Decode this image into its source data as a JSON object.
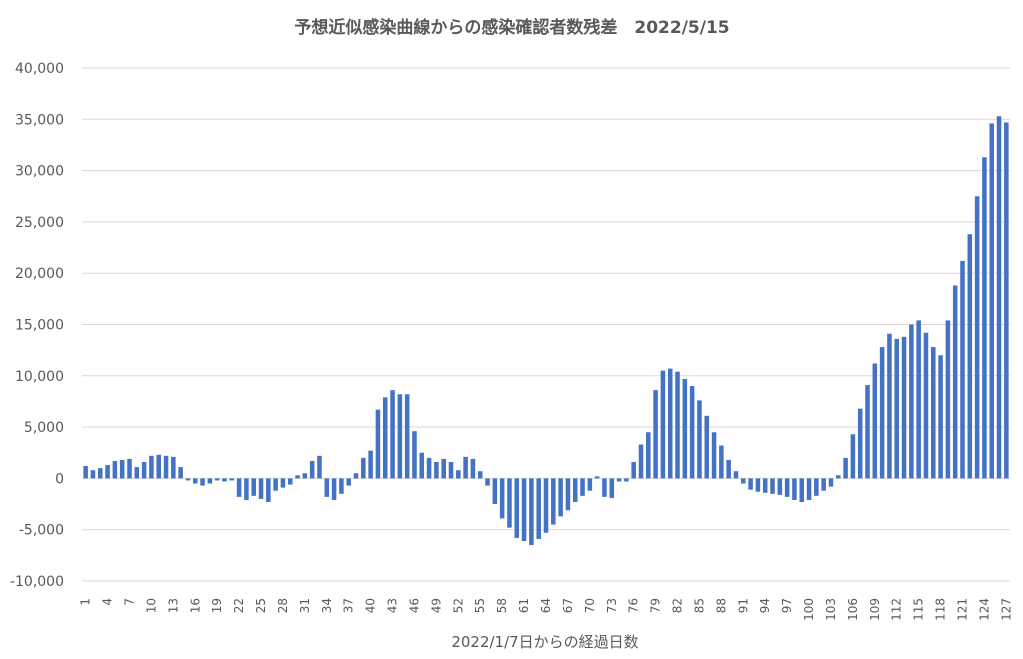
{
  "chart_data": {
    "type": "bar",
    "title": "予想近似感染曲線からの感染確認者数残差　2022/5/15",
    "xlabel": "2022/1/7日からの経過日数",
    "ylabel": "",
    "ylim": [
      -10000,
      40000
    ],
    "yticks": [
      40000,
      35000,
      30000,
      25000,
      20000,
      15000,
      10000,
      5000,
      0,
      -5000,
      -10000
    ],
    "ytick_labels": [
      "40,000",
      "35,000",
      "30,000",
      "25,000",
      "20,000",
      "15,000",
      "10,000",
      "5,000",
      "0",
      "-5,000",
      "-10,000"
    ],
    "xtick_labels": [
      "1",
      "4",
      "7",
      "10",
      "13",
      "16",
      "19",
      "22",
      "25",
      "28",
      "31",
      "34",
      "37",
      "40",
      "43",
      "46",
      "49",
      "52",
      "55",
      "58",
      "61",
      "64",
      "67",
      "70",
      "73",
      "76",
      "79",
      "82",
      "85",
      "88",
      "91",
      "94",
      "97",
      "100",
      "103",
      "106",
      "109",
      "112",
      "115",
      "118",
      "121",
      "124",
      "127"
    ],
    "x_start": 1,
    "grid": true,
    "legend": "none",
    "color": "#4472c4",
    "values": [
      1200,
      800,
      1000,
      1300,
      1700,
      1800,
      1900,
      1100,
      1600,
      2200,
      2300,
      2200,
      2100,
      1100,
      -200,
      -500,
      -700,
      -500,
      -200,
      -300,
      -200,
      -1800,
      -2100,
      -1700,
      -2000,
      -2300,
      -1200,
      -900,
      -600,
      300,
      500,
      1700,
      2200,
      -1800,
      -2100,
      -1500,
      -700,
      500,
      2000,
      2700,
      6700,
      7900,
      8600,
      8200,
      8200,
      4600,
      2500,
      2000,
      1600,
      1900,
      1600,
      800,
      2100,
      1900,
      700,
      -700,
      -2500,
      -3900,
      -4800,
      -5800,
      -6100,
      -6500,
      -5900,
      -5300,
      -4500,
      -3700,
      -3100,
      -2300,
      -1700,
      -1200,
      200,
      -1800,
      -1900,
      -300,
      -300,
      1600,
      3300,
      4500,
      8600,
      10500,
      10700,
      10400,
      9700,
      9000,
      7600,
      6100,
      4500,
      3200,
      1800,
      700,
      -500,
      -1100,
      -1300,
      -1400,
      -1500,
      -1600,
      -1800,
      -2100,
      -2300,
      -2100,
      -1700,
      -1200,
      -800,
      300,
      2000,
      4300,
      6800,
      9100,
      11200,
      12800,
      14100,
      13600,
      13800,
      15000,
      15400,
      14200,
      12800,
      12000,
      15400,
      18800,
      21200,
      23800,
      27500,
      31300,
      34600,
      35300,
      34700
    ]
  }
}
